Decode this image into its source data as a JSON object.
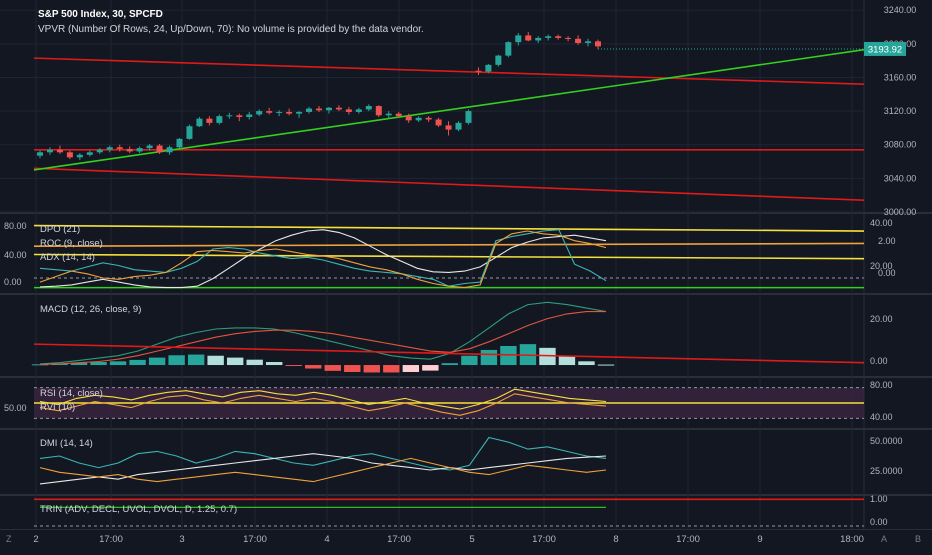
{
  "header": {
    "title": "S&P 500 Index, 30, SPCFD",
    "subtitle": "VPVR (Number Of Rows, 24, Up/Down, 70): No volume is provided by the data vendor."
  },
  "colors": {
    "background": "#131722",
    "grid": "#1f2433",
    "axis_text": "#b2b5be",
    "candle_up": "#26a69a",
    "candle_down": "#ef5350",
    "trend_red": "#e01919",
    "trend_green": "#33d11e",
    "price_label_bg": "#26a69a",
    "yellow": "#f5e13b",
    "orange": "#f0a23a",
    "white": "#e8e8e8",
    "teal": "#3bb5b5",
    "macd_line": "#2e9c7a",
    "signal_line": "#e2563b",
    "rvi_band": "#3a2440"
  },
  "x_axis": {
    "labels": [
      "2",
      "17:00",
      "3",
      "17:00",
      "4",
      "17:00",
      "5",
      "17:00",
      "8",
      "17:00",
      "9",
      "18:00"
    ],
    "corner_left": "Z",
    "corner_right": "B",
    "corner_mid": "A"
  },
  "chart_data": [
    {
      "name": "price",
      "type": "candlestick",
      "y_ticks": [
        "3240.00",
        "3200.00",
        "3160.00",
        "3120.00",
        "3080.00",
        "3040.00",
        "3000.00"
      ],
      "ylim": [
        3000,
        3245
      ],
      "last_price_label": "3193.92",
      "last_price": 3193.92,
      "candles": [
        [
          3067,
          3073,
          3064,
          3071
        ],
        [
          3071,
          3077,
          3068,
          3074
        ],
        [
          3074,
          3079,
          3069,
          3071
        ],
        [
          3071,
          3073,
          3063,
          3065
        ],
        [
          3065,
          3070,
          3062,
          3068
        ],
        [
          3068,
          3073,
          3066,
          3071
        ],
        [
          3071,
          3076,
          3069,
          3074
        ],
        [
          3074,
          3079,
          3071,
          3077
        ],
        [
          3077,
          3080,
          3072,
          3075
        ],
        [
          3075,
          3078,
          3070,
          3072
        ],
        [
          3072,
          3078,
          3070,
          3076
        ],
        [
          3076,
          3081,
          3073,
          3079
        ],
        [
          3079,
          3081,
          3069,
          3071
        ],
        [
          3071,
          3079,
          3068,
          3077
        ],
        [
          3077,
          3088,
          3076,
          3087
        ],
        [
          3087,
          3104,
          3086,
          3102
        ],
        [
          3102,
          3113,
          3101,
          3111
        ],
        [
          3111,
          3114,
          3103,
          3106
        ],
        [
          3106,
          3116,
          3104,
          3114
        ],
        [
          3114,
          3118,
          3111,
          3115
        ],
        [
          3115,
          3117,
          3108,
          3113
        ],
        [
          3113,
          3119,
          3110,
          3116
        ],
        [
          3116,
          3122,
          3114,
          3120
        ],
        [
          3120,
          3124,
          3116,
          3118
        ],
        [
          3118,
          3121,
          3114,
          3119
        ],
        [
          3119,
          3123,
          3115,
          3117
        ],
        [
          3117,
          3120,
          3112,
          3119
        ],
        [
          3119,
          3125,
          3117,
          3123
        ],
        [
          3123,
          3126,
          3119,
          3121
        ],
        [
          3121,
          3125,
          3117,
          3124
        ],
        [
          3124,
          3127,
          3120,
          3122
        ],
        [
          3122,
          3125,
          3116,
          3119
        ],
        [
          3119,
          3124,
          3117,
          3122
        ],
        [
          3122,
          3128,
          3120,
          3126
        ],
        [
          3126,
          3127,
          3113,
          3115
        ],
        [
          3115,
          3120,
          3111,
          3117
        ],
        [
          3117,
          3119,
          3112,
          3114
        ],
        [
          3114,
          3117,
          3106,
          3109
        ],
        [
          3109,
          3114,
          3107,
          3112
        ],
        [
          3112,
          3114,
          3107,
          3110
        ],
        [
          3110,
          3112,
          3101,
          3103
        ],
        [
          3103,
          3108,
          3091,
          3098
        ],
        [
          3098,
          3108,
          3096,
          3106
        ],
        [
          3106,
          3122,
          3104,
          3120
        ],
        [
          3168,
          3172,
          3163,
          3167
        ],
        [
          3167,
          3176,
          3165,
          3175
        ],
        [
          3175,
          3187,
          3173,
          3186
        ],
        [
          3186,
          3203,
          3184,
          3202
        ],
        [
          3202,
          3213,
          3198,
          3210
        ],
        [
          3210,
          3214,
          3203,
          3204
        ],
        [
          3204,
          3209,
          3201,
          3207
        ],
        [
          3207,
          3211,
          3204,
          3209
        ],
        [
          3209,
          3211,
          3205,
          3207
        ],
        [
          3207,
          3209,
          3203,
          3206
        ],
        [
          3206,
          3210,
          3199,
          3201
        ],
        [
          3201,
          3206,
          3197,
          3203
        ],
        [
          3203,
          3205,
          3194,
          3197
        ]
      ],
      "overlays": [
        {
          "name": "descending-red-1",
          "color": "red",
          "from": [
            0,
            3183
          ],
          "to": [
            1,
            3152
          ]
        },
        {
          "name": "horizontal-red-2",
          "color": "red",
          "from": [
            0,
            3074
          ],
          "to": [
            1,
            3074
          ]
        },
        {
          "name": "descending-red-3",
          "color": "red",
          "from": [
            0,
            3052
          ],
          "to": [
            1,
            3014
          ]
        },
        {
          "name": "ascending-green",
          "color": "green",
          "from": [
            0,
            3050
          ],
          "to": [
            1,
            3193
          ]
        }
      ]
    },
    {
      "name": "oscillators",
      "type": "line",
      "legend": [
        "DPO (21)",
        "ROC (9, close)",
        "ADX (14, 14)"
      ],
      "left_ticks": [
        "80.00",
        "40.00",
        "0.00"
      ],
      "right_ticks": [
        "40.00",
        "20.00"
      ],
      "right_ticks_2": [
        "2.00",
        "0.00"
      ],
      "series": [
        {
          "color": "white",
          "values": [
            3,
            4,
            6,
            10,
            14,
            10,
            6,
            3,
            2,
            2,
            4,
            15,
            30,
            45,
            58,
            70,
            78,
            84,
            86,
            82,
            74,
            62,
            50,
            40,
            30,
            25,
            24,
            26,
            32,
            46,
            60,
            68,
            74,
            76,
            78,
            74,
            70
          ]
        },
        {
          "color": "teal",
          "values": [
            30,
            28,
            26,
            32,
            38,
            34,
            28,
            26,
            24,
            30,
            40,
            58,
            60,
            58,
            52,
            48,
            44,
            46,
            42,
            36,
            30,
            26,
            24,
            22,
            18,
            14,
            4,
            8,
            10,
            70,
            76,
            80,
            84,
            86,
            36,
            26,
            12
          ]
        },
        {
          "color": "orange",
          "values": [
            10,
            18,
            26,
            22,
            16,
            14,
            18,
            20,
            24,
            38,
            54,
            56,
            54,
            52,
            56,
            58,
            54,
            50,
            48,
            44,
            38,
            32,
            28,
            22,
            14,
            8,
            4,
            2,
            6,
            66,
            80,
            84,
            80,
            78,
            70,
            66,
            60
          ]
        }
      ],
      "levels": [
        {
          "color": "yellow",
          "values": [
            92,
            84
          ]
        },
        {
          "color": "orange",
          "values": [
            62,
            66
          ]
        },
        {
          "color": "yellow",
          "values": [
            50,
            44
          ]
        },
        {
          "color": "green",
          "values": [
            2,
            2
          ]
        }
      ]
    },
    {
      "name": "macd",
      "type": "histogram+line",
      "legend": [
        "MACD (12, 26, close, 9)"
      ],
      "right_ticks": [
        "20.00",
        "0.00"
      ],
      "ylim": [
        -3,
        28
      ],
      "macd": [
        0.5,
        1,
        2,
        3,
        4,
        6,
        9,
        12,
        14,
        15.5,
        16,
        16,
        15.5,
        14,
        12,
        10,
        8,
        6,
        4,
        3,
        2.5,
        5,
        10,
        16,
        22,
        26,
        27,
        26,
        24.5,
        23
      ],
      "signal": [
        0.3,
        0.5,
        1,
        1.5,
        2.5,
        4,
        6,
        8,
        10,
        12,
        13.5,
        14.5,
        15,
        15,
        14.5,
        13.5,
        12,
        10.5,
        9,
        7.5,
        6,
        5.5,
        7,
        10,
        13.5,
        17,
        20,
        22,
        23,
        23
      ],
      "histogram": [
        0.3,
        0.6,
        1,
        1.3,
        1.6,
        2.2,
        3.2,
        4.2,
        4.5,
        4,
        3.2,
        2.3,
        1.3,
        -0.2,
        -1.5,
        -2.5,
        -3,
        -3.2,
        -3.2,
        -3,
        -2.4,
        0.8,
        4,
        6.5,
        8.2,
        9,
        7.4,
        4,
        1.6,
        0.2
      ],
      "trend": {
        "color": "red",
        "from": 9,
        "to": 1
      }
    },
    {
      "name": "rsi-rvi",
      "type": "line",
      "legend": [
        "RSI (14, close)",
        "RVI (10)"
      ],
      "left_ticks": [
        "50.00"
      ],
      "right_ticks": [
        "80.00",
        "40.00"
      ],
      "ylim": [
        30,
        90
      ],
      "band": [
        40,
        80
      ],
      "level": {
        "color": "yellow",
        "values": [
          60,
          60
        ]
      },
      "series": [
        {
          "color": "yellow",
          "values": [
            62,
            58,
            66,
            70,
            68,
            64,
            70,
            74,
            76,
            72,
            68,
            74,
            76,
            72,
            70,
            74,
            70,
            64,
            58,
            62,
            66,
            60,
            56,
            52,
            58,
            66,
            78,
            74,
            70,
            66,
            64,
            62
          ]
        },
        {
          "color": "orange",
          "values": [
            54,
            50,
            56,
            62,
            58,
            54,
            62,
            68,
            70,
            64,
            60,
            66,
            70,
            66,
            62,
            66,
            62,
            56,
            50,
            54,
            60,
            54,
            48,
            44,
            50,
            60,
            72,
            68,
            64,
            60,
            58,
            56
          ]
        }
      ]
    },
    {
      "name": "dmi",
      "type": "line",
      "legend": [
        "DMI (14, 14)"
      ],
      "right_ticks": [
        "50.0000",
        "25.0000"
      ],
      "ylim": [
        5,
        55
      ],
      "series": [
        {
          "color": "teal",
          "values": [
            34,
            36,
            30,
            26,
            30,
            38,
            40,
            36,
            30,
            34,
            40,
            38,
            34,
            30,
            28,
            32,
            36,
            38,
            34,
            30,
            26,
            24,
            28,
            52,
            48,
            42,
            44,
            40,
            36,
            34
          ]
        },
        {
          "color": "white",
          "values": [
            12,
            14,
            16,
            18,
            16,
            20,
            22,
            24,
            26,
            28,
            30,
            32,
            34,
            36,
            38,
            36,
            34,
            30,
            28,
            26,
            24,
            26,
            24,
            26,
            28,
            30,
            32,
            34,
            35,
            36
          ]
        },
        {
          "color": "orange",
          "values": [
            26,
            22,
            20,
            18,
            20,
            16,
            14,
            16,
            18,
            20,
            22,
            20,
            18,
            16,
            14,
            18,
            22,
            26,
            30,
            34,
            30,
            26,
            22,
            20,
            24,
            28,
            26,
            24,
            22,
            24
          ]
        }
      ]
    },
    {
      "name": "trin",
      "type": "line",
      "legend": [
        "TRIN (ADV, DECL, UVOL, DVOL, D, 1.25, 0.7)"
      ],
      "right_ticks": [
        "1.00",
        "0.00"
      ],
      "lines": [
        {
          "color": "red",
          "value": 1.0
        },
        {
          "color": "green",
          "value": 0.7
        }
      ]
    }
  ]
}
